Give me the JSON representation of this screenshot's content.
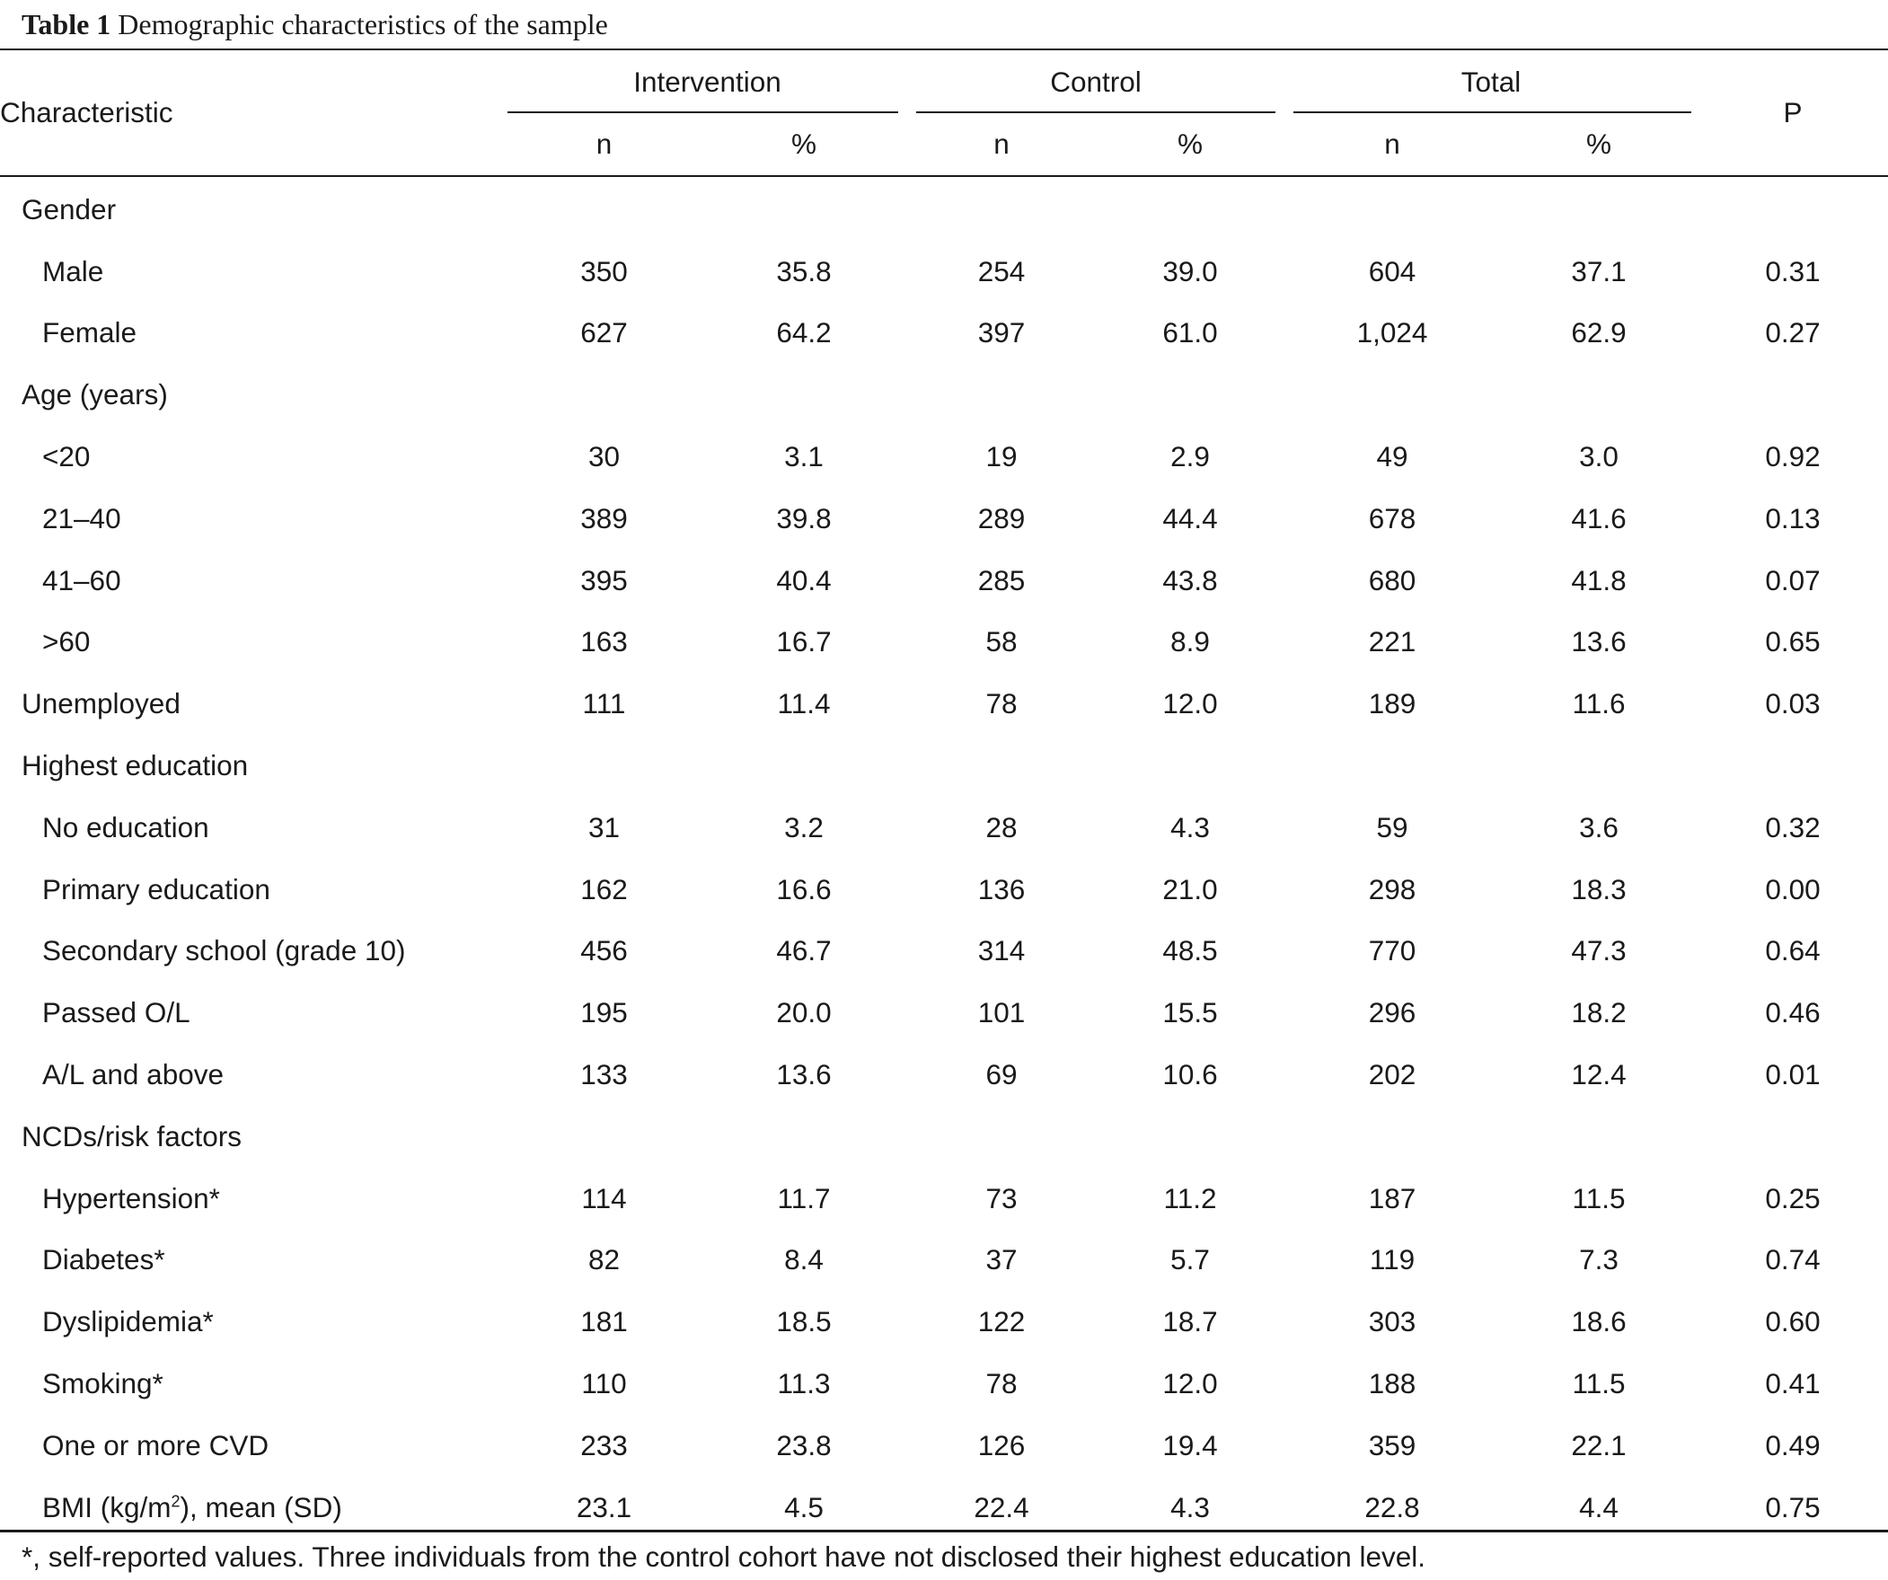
{
  "caption": {
    "label": "Table 1",
    "title": "Demographic characteristics of the sample"
  },
  "header": {
    "characteristic": "Characteristic",
    "groups": [
      "Intervention",
      "Control",
      "Total"
    ],
    "subcolumns": [
      "n",
      "%",
      "n",
      "%",
      "n",
      "%"
    ],
    "p": "P"
  },
  "rows": [
    {
      "label": "Gender",
      "values": [
        "",
        "",
        "",
        "",
        "",
        "",
        ""
      ]
    },
    {
      "label": "Male",
      "values": [
        "350",
        "35.8",
        "254",
        "39.0",
        "604",
        "37.1",
        "0.31"
      ]
    },
    {
      "label": "Female",
      "values": [
        "627",
        "64.2",
        "397",
        "61.0",
        "1,024",
        "62.9",
        "0.27"
      ]
    },
    {
      "label": "Age (years)",
      "values": [
        "",
        "",
        "",
        "",
        "",
        "",
        ""
      ]
    },
    {
      "label": "<20",
      "values": [
        "30",
        "3.1",
        "19",
        "2.9",
        "49",
        "3.0",
        "0.92"
      ]
    },
    {
      "label": "21–40",
      "values": [
        "389",
        "39.8",
        "289",
        "44.4",
        "678",
        "41.6",
        "0.13"
      ]
    },
    {
      "label": "41–60",
      "values": [
        "395",
        "40.4",
        "285",
        "43.8",
        "680",
        "41.8",
        "0.07"
      ]
    },
    {
      "label": ">60",
      "values": [
        "163",
        "16.7",
        "58",
        "8.9",
        "221",
        "13.6",
        "0.65"
      ]
    },
    {
      "label": "Unemployed",
      "values": [
        "111",
        "11.4",
        "78",
        "12.0",
        "189",
        "11.6",
        "0.03"
      ]
    },
    {
      "label": "Highest education",
      "values": [
        "",
        "",
        "",
        "",
        "",
        "",
        ""
      ]
    },
    {
      "label": "No education",
      "values": [
        "31",
        "3.2",
        "28",
        "4.3",
        "59",
        "3.6",
        "0.32"
      ]
    },
    {
      "label": "Primary education",
      "values": [
        "162",
        "16.6",
        "136",
        "21.0",
        "298",
        "18.3",
        "0.00"
      ]
    },
    {
      "label": "Secondary school (grade 10)",
      "values": [
        "456",
        "46.7",
        "314",
        "48.5",
        "770",
        "47.3",
        "0.64"
      ]
    },
    {
      "label": "Passed O/L",
      "values": [
        "195",
        "20.0",
        "101",
        "15.5",
        "296",
        "18.2",
        "0.46"
      ]
    },
    {
      "label": "A/L and above",
      "values": [
        "133",
        "13.6",
        "69",
        "10.6",
        "202",
        "12.4",
        "0.01"
      ]
    },
    {
      "label": "NCDs/risk factors",
      "values": [
        "",
        "",
        "",
        "",
        "",
        "",
        ""
      ]
    },
    {
      "label": "Hypertension*",
      "values": [
        "114",
        "11.7",
        "73",
        "11.2",
        "187",
        "11.5",
        "0.25"
      ]
    },
    {
      "label": "Diabetes*",
      "values": [
        "82",
        "8.4",
        "37",
        "5.7",
        "119",
        "7.3",
        "0.74"
      ]
    },
    {
      "label": "Dyslipidemia*",
      "values": [
        "181",
        "18.5",
        "122",
        "18.7",
        "303",
        "18.6",
        "0.60"
      ]
    },
    {
      "label": "Smoking*",
      "values": [
        "110",
        "11.3",
        "78",
        "12.0",
        "188",
        "11.5",
        "0.41"
      ]
    },
    {
      "label": "One or more CVD",
      "values": [
        "233",
        "23.8",
        "126",
        "19.4",
        "359",
        "22.1",
        "0.49"
      ]
    },
    {
      "label": "BMI (kg/m",
      "label_sup": "2",
      "label_after": "), mean (SD)",
      "values": [
        "23.1",
        "4.5",
        "22.4",
        "4.3",
        "22.8",
        "4.4",
        "0.75"
      ]
    }
  ],
  "footnote": "*, self-reported values. Three individuals from the control cohort have not disclosed their highest education level."
}
